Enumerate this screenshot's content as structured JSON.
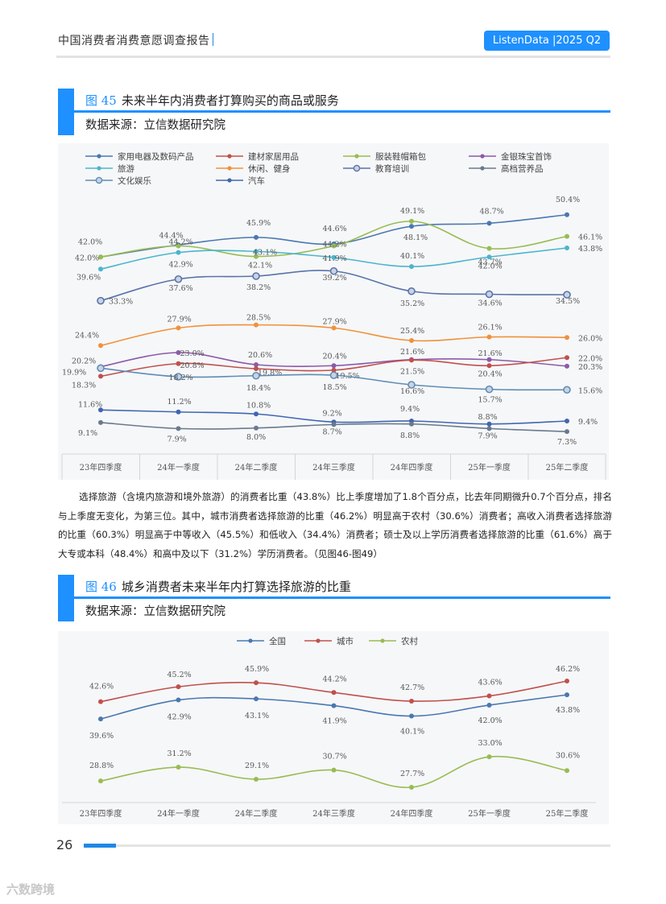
{
  "header": {
    "title": "中国消费者消费意愿调查报告",
    "brand": "ListenData |2025 Q2"
  },
  "fig45": {
    "number": "图 45",
    "title": "未来半年内消费者打算购买的商品或服务",
    "source": "数据来源：立信数据研究院"
  },
  "fig46": {
    "number": "图 46",
    "title": "城乡消费者未来半年内打算选择旅游的比重",
    "source": "数据来源：立信数据研究院"
  },
  "paragraph": "选择旅游（含境内旅游和境外旅游）的消费者比重（43.8%）比上季度增加了1.8个百分点，比去年同期微升0.7个百分点，排名与上季度无变化，为第三位。其中，城市消费者选择旅游的比重（46.2%）明显高于农村（30.6%）消费者；高收入消费者选择旅游的比重（60.3%）明显高于中等收入（45.5%）和低收入（34.4%）消费者；硕士及以上学历消费者选择旅游的比重（61.6%）高于大专或本科（48.4%）和高中及以下（31.2%）学历消费者。（见图46-图49）",
  "footer": {
    "page": "26",
    "watermark": "六数跨境"
  },
  "chart_data": [
    {
      "type": "line",
      "title": "未来半年内消费者打算购买的商品或服务",
      "categories": [
        "23年四季度",
        "24年一季度",
        "24年二季度",
        "24年三季度",
        "24年四季度",
        "25年一季度",
        "25年二季度"
      ],
      "ylim": [
        0,
        55
      ],
      "series": [
        {
          "name": "家用电器及数码产品",
          "color": "#4a78b0",
          "values": [
            42.0,
            44.4,
            45.9,
            44.6,
            48.1,
            48.7,
            50.4
          ],
          "labels": [
            "42.0%",
            "44.4%",
            "45.9%",
            "44.6%",
            "48.1%",
            "48.7%",
            "50.4%"
          ]
        },
        {
          "name": "服装鞋帽箱包",
          "color": "#98bc52",
          "values": [
            42.0,
            44.2,
            42.1,
            44.2,
            49.1,
            43.7,
            46.1
          ],
          "labels": [
            "42.0%",
            "44.2%",
            "42.1%",
            "44.2%",
            "49.1%",
            "43.7%",
            "46.1%"
          ]
        },
        {
          "name": "旅游",
          "color": "#4bb5cc",
          "values": [
            39.6,
            42.9,
            43.1,
            41.9,
            40.1,
            42.0,
            43.8
          ],
          "labels": [
            "39.6%",
            "42.9%",
            "43.1%",
            "41.9%",
            "40.1%",
            "42.0%",
            "43.8%"
          ]
        },
        {
          "name": "教育培训",
          "color": "#5a73a8",
          "values": [
            33.3,
            37.6,
            38.2,
            39.2,
            35.2,
            34.6,
            34.5
          ],
          "labels": [
            "33.3%",
            "37.6%",
            "38.2%",
            "39.2%",
            "35.2%",
            "34.6%",
            "34.5%"
          ]
        },
        {
          "name": "休闲、健身",
          "color": "#f0913a",
          "values": [
            24.4,
            27.9,
            28.5,
            27.9,
            25.4,
            26.1,
            26.0
          ],
          "labels": [
            "24.4%",
            "27.9%",
            "28.5%",
            "27.9%",
            "25.4%",
            "26.1%",
            "26.0%"
          ]
        },
        {
          "name": "金银珠宝首饰",
          "color": "#8c5aa8",
          "values": [
            20.2,
            23.0,
            20.6,
            20.4,
            21.6,
            21.6,
            20.3
          ],
          "labels": [
            "20.2%",
            "23.0%",
            "20.6%",
            "20.4%",
            "21.6%",
            "21.6%",
            "20.3%"
          ]
        },
        {
          "name": "建材家居用品",
          "color": "#c0504d",
          "values": [
            18.3,
            20.8,
            19.8,
            19.5,
            21.5,
            20.4,
            22.0
          ],
          "labels": [
            "18.3%",
            "20.8%",
            "19.8%",
            "19.5%",
            "21.5%",
            "20.4%",
            "22.0%"
          ]
        },
        {
          "name": "文化娱乐",
          "color": "#5f8cb5",
          "values": [
            19.9,
            18.2,
            18.4,
            18.5,
            16.6,
            15.7,
            15.6
          ],
          "labels": [
            "19.9%",
            "18.2%",
            "18.4%",
            "18.5%",
            "16.6%",
            "15.7%",
            "15.6%"
          ]
        },
        {
          "name": "汽车",
          "color": "#4166b0",
          "values": [
            11.6,
            11.2,
            10.8,
            9.2,
            9.4,
            8.8,
            9.4
          ],
          "labels": [
            "11.6%",
            "11.2%",
            "10.8%",
            "9.2%",
            "9.4%",
            "8.8%",
            "9.4%"
          ]
        },
        {
          "name": "高档营养品",
          "color": "#6a7a8c",
          "values": [
            9.1,
            7.9,
            8.0,
            8.7,
            8.8,
            7.9,
            7.3
          ],
          "labels": [
            "9.1%",
            "7.9%",
            "8.0%",
            "8.7%",
            "8.8%",
            "7.9%",
            "7.3%"
          ]
        }
      ],
      "legend": [
        "家用电器及数码产品",
        "建材家居用品",
        "服装鞋帽箱包",
        "金银珠宝首饰",
        "旅游",
        "休闲、健身",
        "教育培训",
        "高档营养品",
        "文化娱乐",
        "汽车"
      ]
    },
    {
      "type": "line",
      "title": "城乡消费者未来半年内打算选择旅游的比重",
      "categories": [
        "23年四季度",
        "24年一季度",
        "24年二季度",
        "24年三季度",
        "24年四季度",
        "25年一季度",
        "25年二季度"
      ],
      "ylim": [
        25,
        48
      ],
      "series": [
        {
          "name": "全国",
          "color": "#4a78b0",
          "values": [
            39.6,
            42.9,
            43.1,
            41.9,
            40.1,
            42.0,
            43.8
          ],
          "labels": [
            "39.6%",
            "42.9%",
            "43.1%",
            "41.9%",
            "40.1%",
            "42.0%",
            "43.8%"
          ]
        },
        {
          "name": "城市",
          "color": "#c0504d",
          "values": [
            42.6,
            45.2,
            45.9,
            44.2,
            42.7,
            43.6,
            46.2
          ],
          "labels": [
            "42.6%",
            "45.2%",
            "45.9%",
            "44.2%",
            "42.7%",
            "43.6%",
            "46.2%"
          ]
        },
        {
          "name": "农村",
          "color": "#98bc52",
          "values": [
            28.8,
            31.2,
            29.1,
            30.7,
            27.7,
            33.0,
            30.6
          ],
          "labels": [
            "28.8%",
            "31.2%",
            "29.1%",
            "30.7%",
            "27.7%",
            "33.0%",
            "30.6%"
          ]
        }
      ],
      "legend": [
        "全国",
        "城市",
        "农村"
      ]
    }
  ]
}
